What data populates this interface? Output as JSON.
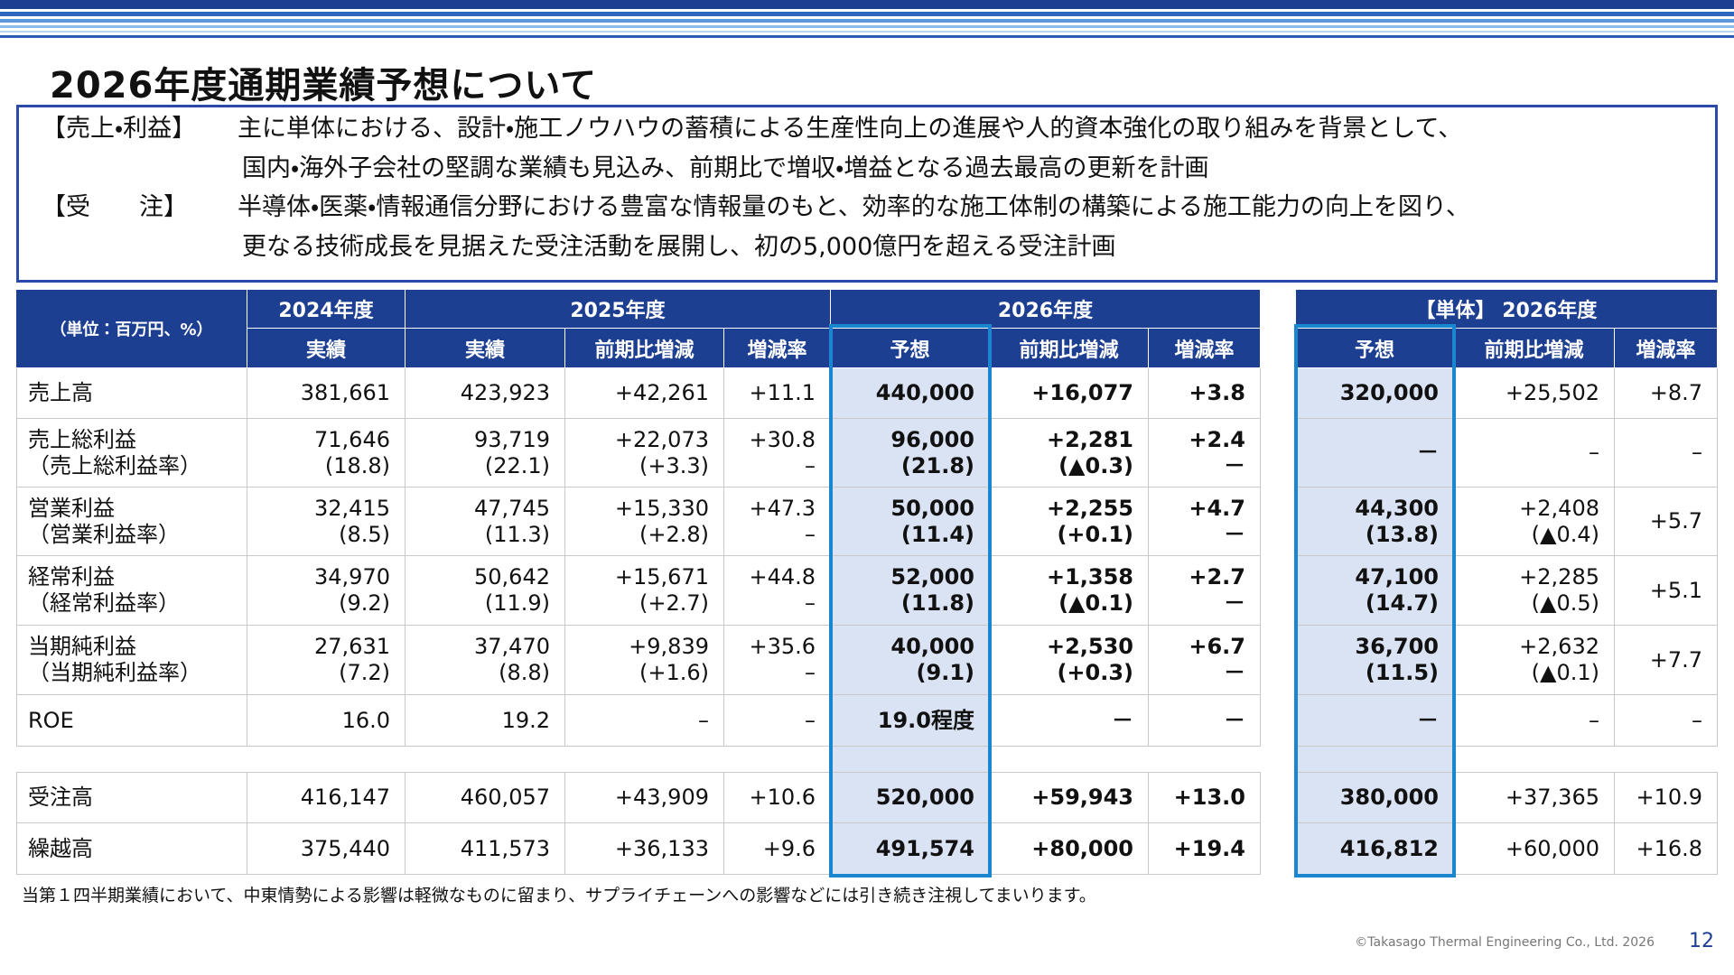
{
  "title": "2026年度通期業績予想について",
  "summary": [
    {
      "label": "【売上・利益】",
      "lines": [
        "主に単体における、設計・施工ノウハウの蓄積による生産性向上の進展や人的資本強化の取り組みを背景として、",
        "国内・海外子会社の堅調な業績も見込み、前期比で増収・増益となる過去最高の更新を計画"
      ]
    },
    {
      "label": "【受　　注】",
      "lines": [
        "半導体・医薬・情報通信分野における豊富な情報量のもと、効率的な施工体制の構築による施工能力の向上を図り、",
        "更なる技術成長を見据えた受注活動を展開し、初の5,000億円を超える受注計画"
      ]
    }
  ],
  "table": {
    "unit": "（単位：百万円、%）",
    "years": [
      "2024年度",
      "2025年度",
      "2026年度"
    ],
    "subheaders": [
      "実績",
      "実績",
      "前期比増減",
      "増減率",
      "予想",
      "前期比増減",
      "増減率"
    ],
    "rows": [
      {
        "label": [
          "売上高"
        ],
        "cells": [
          [
            "381,661"
          ],
          [
            "423,923"
          ],
          [
            "+42,261"
          ],
          [
            "+11.1"
          ],
          [
            "440,000"
          ],
          [
            "+16,077"
          ],
          [
            "+3.8"
          ]
        ]
      },
      {
        "label": [
          "売上総利益",
          "（売上総利益率）"
        ],
        "cells": [
          [
            "71,646",
            "(18.8)"
          ],
          [
            "93,719",
            "(22.1)"
          ],
          [
            "+22,073",
            "(+3.3)"
          ],
          [
            "+30.8",
            "–"
          ],
          [
            "96,000",
            "(21.8)"
          ],
          [
            "+2,281",
            "(▲0.3)"
          ],
          [
            "+2.4",
            "－"
          ]
        ]
      },
      {
        "label": [
          "営業利益",
          "（営業利益率）"
        ],
        "cells": [
          [
            "32,415",
            "(8.5)"
          ],
          [
            "47,745",
            "(11.3)"
          ],
          [
            "+15,330",
            "(+2.8)"
          ],
          [
            "+47.3",
            "–"
          ],
          [
            "50,000",
            "(11.4)"
          ],
          [
            "+2,255",
            "(+0.1)"
          ],
          [
            "+4.7",
            "－"
          ]
        ]
      },
      {
        "label": [
          "経常利益",
          "（経常利益率）"
        ],
        "cells": [
          [
            "34,970",
            "(9.2)"
          ],
          [
            "50,642",
            "(11.9)"
          ],
          [
            "+15,671",
            "(+2.7)"
          ],
          [
            "+44.8",
            "–"
          ],
          [
            "52,000",
            "(11.8)"
          ],
          [
            "+1,358",
            "(▲0.1)"
          ],
          [
            "+2.7",
            "－"
          ]
        ]
      },
      {
        "label": [
          "当期純利益",
          "（当期純利益率）"
        ],
        "cells": [
          [
            "27,631",
            "(7.2)"
          ],
          [
            "37,470",
            "(8.8)"
          ],
          [
            "+9,839",
            "(+1.6)"
          ],
          [
            "+35.6",
            "–"
          ],
          [
            "40,000",
            "(9.1)"
          ],
          [
            "+2,530",
            "(+0.3)"
          ],
          [
            "+6.7",
            "－"
          ]
        ]
      },
      {
        "label": [
          "ROE"
        ],
        "cells": [
          [
            "16.0"
          ],
          [
            "19.2"
          ],
          [
            "–"
          ],
          [
            "–"
          ],
          [
            "19.0程度"
          ],
          [
            "－"
          ],
          [
            "－"
          ]
        ]
      },
      {
        "label": [
          "受注高"
        ],
        "cells": [
          [
            "416,147"
          ],
          [
            "460,057"
          ],
          [
            "+43,909"
          ],
          [
            "+10.6"
          ],
          [
            "520,000"
          ],
          [
            "+59,943"
          ],
          [
            "+13.0"
          ]
        ]
      },
      {
        "label": [
          "繰越高"
        ],
        "cells": [
          [
            "375,440"
          ],
          [
            "411,573"
          ],
          [
            "+36,133"
          ],
          [
            "+9.6"
          ],
          [
            "491,574"
          ],
          [
            "+80,000"
          ],
          [
            "+19.4"
          ]
        ]
      }
    ]
  },
  "single_table": {
    "title": "【単体】 2026年度",
    "subheaders": [
      "予想",
      "前期比増減",
      "増減率"
    ],
    "rows": [
      [
        [
          "320,000"
        ],
        [
          "+25,502"
        ],
        [
          "+8.7"
        ]
      ],
      [
        [
          "－"
        ],
        [
          "–"
        ],
        [
          "–"
        ]
      ],
      [
        [
          "44,300",
          "(13.8)"
        ],
        [
          "+2,408",
          "(▲0.4)"
        ],
        [
          "+5.7"
        ]
      ],
      [
        [
          "47,100",
          "(14.7)"
        ],
        [
          "+2,285",
          "(▲0.5)"
        ],
        [
          "+5.1"
        ]
      ],
      [
        [
          "36,700",
          "(11.5)"
        ],
        [
          "+2,632",
          "(▲0.1)"
        ],
        [
          "+7.7"
        ]
      ],
      [
        [
          "－"
        ],
        [
          "–"
        ],
        [
          "–"
        ]
      ],
      [
        [
          "380,000"
        ],
        [
          "+37,365"
        ],
        [
          "+10.9"
        ]
      ],
      [
        [
          "416,812"
        ],
        [
          "+60,000"
        ],
        [
          "+16.8"
        ]
      ]
    ]
  },
  "note": "当第１四半期業績において、中東情勢による影響は軽微なものに留まり、サプライチェーンへの影響などには引き続き注視してまいります。",
  "footer": {
    "copyright": "©Takasago Thermal Engineering Co., Ltd. 2026",
    "page": "12"
  }
}
